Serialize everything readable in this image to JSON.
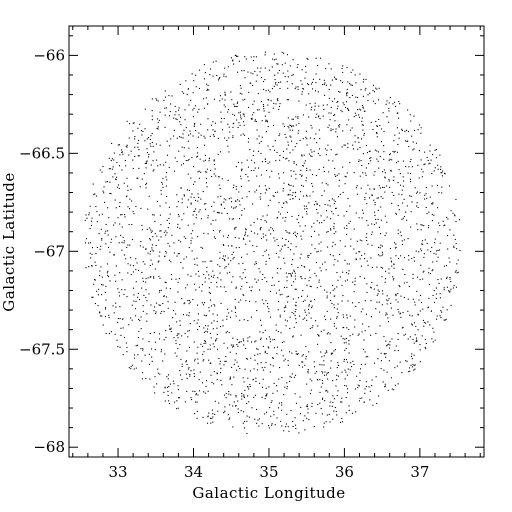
{
  "chart_data": {
    "type": "scatter",
    "title": "",
    "xlabel": "Galactic Longitude",
    "ylabel": "Galactic Latitude",
    "xlim": [
      32.35,
      37.85
    ],
    "ylim": [
      -68.05,
      -65.85
    ],
    "x_ticks": [
      33,
      34,
      35,
      36,
      37
    ],
    "x_tick_labels": [
      "33",
      "34",
      "35",
      "36",
      "37"
    ],
    "y_ticks": [
      -66,
      -66.5,
      -67,
      -67.5,
      -68
    ],
    "y_tick_labels": [
      "−66",
      "−66.5",
      "−67",
      "−67.5",
      "−68"
    ],
    "x_minor_step": 0.2,
    "y_minor_step": 0.1,
    "grid": false,
    "legend": "none",
    "colors": {
      "points": "#000000",
      "axes": "#000000",
      "background": "#ffffff"
    },
    "field": {
      "shape": "circular",
      "center": [
        35.05,
        -66.96
      ],
      "radius_lat_deg": 0.98,
      "approx_point_count": 3200
    }
  }
}
